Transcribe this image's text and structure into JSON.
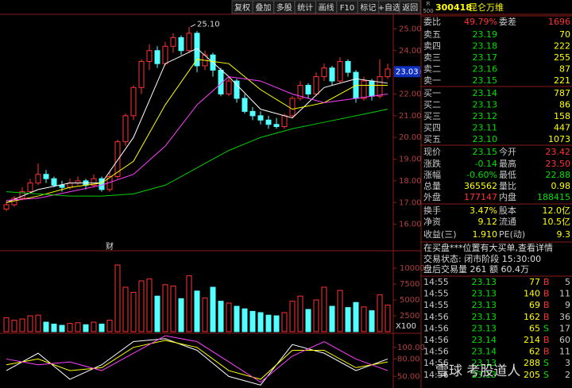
{
  "toolbar": [
    "复权",
    "叠加",
    "多股",
    "统计",
    "画线",
    "F10",
    "标记",
    "+自选",
    "返回"
  ],
  "stock": {
    "badge_top": "R",
    "badge_bottom": "500",
    "code": "300418",
    "name": "昆仑万维"
  },
  "order_ratio": [
    "委比",
    "49.79%",
    "委差",
    "1696"
  ],
  "asks": [
    [
      "卖五",
      "23.19",
      "70"
    ],
    [
      "卖四",
      "23.18",
      "222"
    ],
    [
      "卖三",
      "23.17",
      "255"
    ],
    [
      "卖二",
      "23.16",
      "87"
    ],
    [
      "卖一",
      "23.15",
      "221"
    ]
  ],
  "bids": [
    [
      "买一",
      "23.14",
      "787"
    ],
    [
      "买二",
      "23.13",
      "86"
    ],
    [
      "买三",
      "23.12",
      "158"
    ],
    [
      "买四",
      "23.11",
      "447"
    ],
    [
      "买五",
      "23.10",
      "1073"
    ]
  ],
  "stats": [
    [
      "现价",
      "23.15",
      "今开",
      "23.42"
    ],
    [
      "涨跌",
      "-0.14",
      "最高",
      "23.50"
    ],
    [
      "涨幅",
      "-0.60%",
      "最低",
      "22.88"
    ],
    [
      "总量",
      "365562",
      "量比",
      "0.98"
    ],
    [
      "外盘",
      "177147",
      "内盘",
      "188415"
    ],
    [
      "换手",
      "3.47%",
      "股本",
      "12.0亿"
    ],
    [
      "净资",
      "9.12",
      "流通",
      "10.5亿"
    ],
    [
      "收益(三)",
      "1.910",
      "PE(动)",
      "9.3"
    ]
  ],
  "notice": "在买盘***位置有大买单,查看详情",
  "status": "交易状态: 闭市阶段 15:30:00",
  "after_hours": "盘后交易量 261 额 60.4万",
  "trades": [
    [
      "14:55",
      "23.13",
      "77",
      "B",
      "5"
    ],
    [
      "14:55",
      "23.13",
      "140",
      "B",
      "11"
    ],
    [
      "14:55",
      "23.13",
      "69",
      "B",
      "9"
    ],
    [
      "14:56",
      "23.13",
      "162",
      "B",
      "36"
    ],
    [
      "14:56",
      "23.13",
      "65",
      "S",
      "17"
    ],
    [
      "14:56",
      "23.14",
      "214",
      "B",
      "60"
    ],
    [
      "14:56",
      "23.14",
      "62",
      "B",
      "11"
    ],
    [
      "14:56",
      "23.13",
      "288",
      "S",
      "3"
    ],
    [
      "14:56",
      "23.13",
      "205",
      "S",
      "2"
    ]
  ],
  "watermark": "雪球 考股道人",
  "chart_data": [
    {
      "type": "candlestick",
      "up_color": "#ff3232",
      "down_color": "#54ffff",
      "ylim": [
        15,
        25.6
      ],
      "yticks": [
        {
          "value": 16,
          "label": "16.00"
        },
        {
          "value": 17,
          "label": "17.00"
        },
        {
          "value": 18,
          "label": "18.00"
        },
        {
          "value": 19,
          "label": "19.00"
        },
        {
          "value": 20,
          "label": "20.00"
        },
        {
          "value": 21,
          "label": "21.00"
        },
        {
          "value": 22,
          "label": "22.00"
        },
        {
          "value": 23,
          "label": "23.00"
        },
        {
          "value": 24,
          "label": "24.00"
        },
        {
          "value": 25,
          "label": "25.00"
        }
      ],
      "peak": {
        "index": 23,
        "value": 25.1,
        "label": "25.10"
      },
      "cursor_price": {
        "value": 23.03,
        "label": "23.03"
      },
      "marker": {
        "index": 13,
        "label": "财"
      },
      "candles": [
        [
          16.7,
          17.1,
          16.6,
          16.9
        ],
        [
          16.9,
          17.3,
          16.8,
          17.2
        ],
        [
          17.2,
          17.7,
          17.1,
          17.5
        ],
        [
          17.5,
          18.1,
          17.4,
          17.9
        ],
        [
          17.9,
          18.8,
          17.8,
          18.3
        ],
        [
          18.3,
          18.5,
          17.9,
          18.1
        ],
        [
          18.1,
          18.2,
          17.7,
          17.8
        ],
        [
          17.8,
          18.0,
          17.5,
          17.7
        ],
        [
          17.7,
          18.1,
          17.6,
          17.9
        ],
        [
          17.9,
          18.2,
          17.8,
          18.0
        ],
        [
          18.0,
          18.1,
          17.6,
          17.8
        ],
        [
          17.8,
          18.3,
          17.7,
          18.1
        ],
        [
          18.1,
          18.2,
          17.5,
          17.6
        ],
        [
          17.6,
          18.4,
          17.5,
          18.2
        ],
        [
          18.2,
          19.9,
          18.1,
          19.8
        ],
        [
          19.8,
          21.1,
          19.6,
          21.0
        ],
        [
          21.0,
          22.4,
          20.8,
          22.3
        ],
        [
          22.3,
          23.6,
          22.0,
          23.5
        ],
        [
          23.5,
          24.3,
          23.1,
          24.0
        ],
        [
          24.0,
          24.2,
          23.2,
          23.4
        ],
        [
          23.4,
          24.4,
          23.3,
          24.2
        ],
        [
          24.2,
          24.8,
          23.9,
          24.6
        ],
        [
          24.6,
          24.7,
          23.8,
          24.0
        ],
        [
          24.0,
          25.1,
          23.9,
          24.8
        ],
        [
          24.8,
          24.9,
          23.0,
          23.3
        ],
        [
          23.3,
          24.0,
          23.1,
          23.8
        ],
        [
          23.8,
          23.9,
          22.8,
          23.1
        ],
        [
          23.1,
          23.2,
          21.9,
          22.0
        ],
        [
          22.0,
          22.8,
          21.9,
          22.6
        ],
        [
          22.6,
          22.7,
          21.6,
          21.8
        ],
        [
          21.8,
          22.0,
          21.1,
          21.2
        ],
        [
          21.2,
          21.4,
          20.8,
          21.0
        ],
        [
          21.0,
          21.2,
          20.6,
          20.8
        ],
        [
          20.8,
          21.0,
          20.4,
          20.6
        ],
        [
          20.6,
          20.9,
          20.4,
          20.5
        ],
        [
          20.5,
          21.1,
          20.4,
          21.0
        ],
        [
          21.0,
          21.9,
          20.9,
          21.8
        ],
        [
          21.8,
          22.6,
          21.7,
          22.4
        ],
        [
          22.4,
          22.5,
          21.8,
          22.0
        ],
        [
          22.0,
          23.0,
          21.9,
          22.8
        ],
        [
          22.8,
          23.4,
          22.6,
          23.2
        ],
        [
          23.2,
          23.3,
          22.4,
          22.6
        ],
        [
          22.6,
          23.7,
          22.5,
          23.5
        ],
        [
          23.5,
          23.6,
          22.8,
          23.0
        ],
        [
          23.0,
          23.1,
          21.6,
          21.8
        ],
        [
          21.8,
          22.8,
          21.7,
          22.6
        ],
        [
          22.6,
          22.7,
          21.7,
          21.9
        ],
        [
          21.9,
          23.6,
          21.8,
          22.8
        ],
        [
          22.8,
          23.4,
          22.7,
          23.15
        ]
      ],
      "lines": [
        {
          "color": "#ffffff",
          "x": [
            0,
            4,
            8,
            12,
            16,
            20,
            24,
            28,
            32,
            36,
            40,
            44,
            48
          ],
          "values": [
            17.0,
            17.6,
            17.9,
            17.9,
            20.0,
            23.4,
            24.1,
            22.8,
            21.3,
            20.9,
            22.3,
            22.7,
            22.5
          ]
        },
        {
          "color": "#ffff00",
          "x": [
            0,
            4,
            8,
            12,
            16,
            20,
            24,
            28,
            32,
            36,
            40,
            44,
            48
          ],
          "values": [
            17.0,
            17.3,
            17.7,
            17.9,
            18.9,
            21.5,
            23.6,
            23.4,
            22.2,
            21.3,
            21.6,
            22.4,
            22.4
          ]
        },
        {
          "color": "#ff40ff",
          "x": [
            0,
            4,
            8,
            12,
            16,
            20,
            24,
            28,
            32,
            36,
            40,
            44,
            48
          ],
          "values": [
            17.1,
            17.2,
            17.5,
            17.8,
            18.3,
            19.6,
            21.5,
            22.8,
            22.6,
            22.0,
            21.6,
            21.8,
            22.0
          ]
        },
        {
          "color": "#00d000",
          "x": [
            0,
            4,
            8,
            12,
            16,
            20,
            24,
            28,
            32,
            36,
            40,
            44,
            48
          ],
          "values": [
            17.5,
            17.4,
            17.3,
            17.3,
            17.4,
            17.8,
            18.6,
            19.4,
            20.0,
            20.4,
            20.7,
            21.0,
            21.3
          ]
        }
      ]
    },
    {
      "type": "bar",
      "ylim": [
        0,
        12000
      ],
      "yticks": [
        2500,
        5000,
        7500,
        10000
      ],
      "unit_label": "X100",
      "values": [
        2200,
        1800,
        2000,
        2500,
        2600,
        1500,
        1200,
        1000,
        1300,
        1400,
        1100,
        1500,
        1200,
        1800,
        10500,
        7000,
        6200,
        8000,
        8300,
        5600,
        7400,
        7200,
        5200,
        8800,
        6400,
        5300,
        7000,
        4800,
        4500,
        4000,
        3600,
        3200,
        3000,
        2600,
        2500,
        3000,
        4800,
        5600,
        3500,
        5000,
        7000,
        4000,
        6500,
        3800,
        4600,
        3900,
        3300,
        5800,
        4200
      ]
    },
    {
      "type": "line",
      "ylim": [
        30,
        123
      ],
      "yticks": [
        {
          "value": 50,
          "label": "50.00"
        },
        {
          "value": 80,
          "label": "80.00"
        },
        {
          "value": 100,
          "label": "100.00"
        }
      ],
      "series": [
        {
          "color": "#ffffff",
          "x": [
            0,
            4,
            8,
            12,
            16,
            20,
            24,
            28,
            32,
            36,
            40,
            44,
            48
          ],
          "values": [
            60,
            90,
            45,
            70,
            110,
            115,
            95,
            50,
            35,
            105,
            90,
            60,
            80
          ]
        },
        {
          "color": "#ffff00",
          "x": [
            0,
            4,
            8,
            12,
            16,
            20,
            24,
            28,
            32,
            36,
            40,
            44,
            48
          ],
          "values": [
            70,
            80,
            60,
            65,
            100,
            112,
            100,
            60,
            45,
            95,
            95,
            65,
            75
          ]
        },
        {
          "color": "#ff40ff",
          "x": [
            0,
            4,
            8,
            12,
            16,
            20,
            24,
            28,
            32,
            36,
            40,
            44,
            48
          ],
          "values": [
            80,
            70,
            75,
            60,
            90,
            120,
            110,
            75,
            40,
            85,
            110,
            80,
            60
          ]
        }
      ]
    }
  ]
}
